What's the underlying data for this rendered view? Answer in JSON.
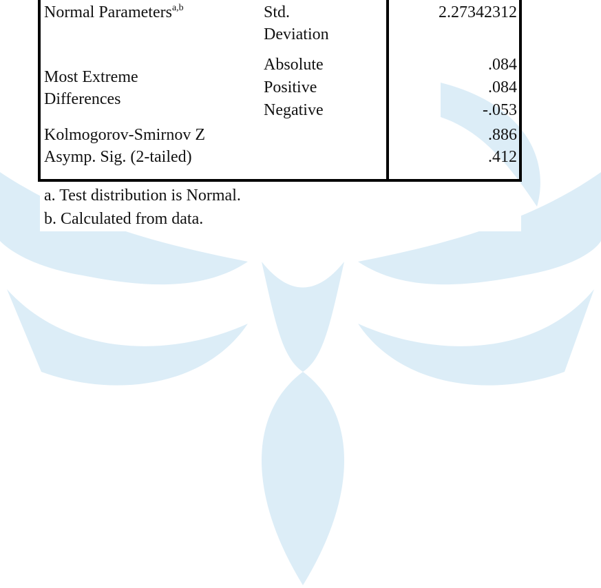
{
  "table": {
    "rows": [
      {
        "label": "Normal Parameters",
        "sup": "a,b",
        "sub": "Std. Deviation",
        "value": "2.27342312"
      },
      {
        "label": "Most Extreme Differences",
        "subrows": [
          {
            "sub": "Absolute",
            "value": ".084"
          },
          {
            "sub": "Positive",
            "value": ".084"
          },
          {
            "sub": "Negative",
            "value": "-.053"
          }
        ]
      },
      {
        "label": "Kolmogorov-Smirnov Z",
        "value": ".886"
      },
      {
        "label": "Asymp. Sig. (2-tailed)",
        "value": ".412"
      }
    ],
    "footnotes": [
      "a. Test distribution is Normal.",
      "b. Calculated from data."
    ]
  }
}
